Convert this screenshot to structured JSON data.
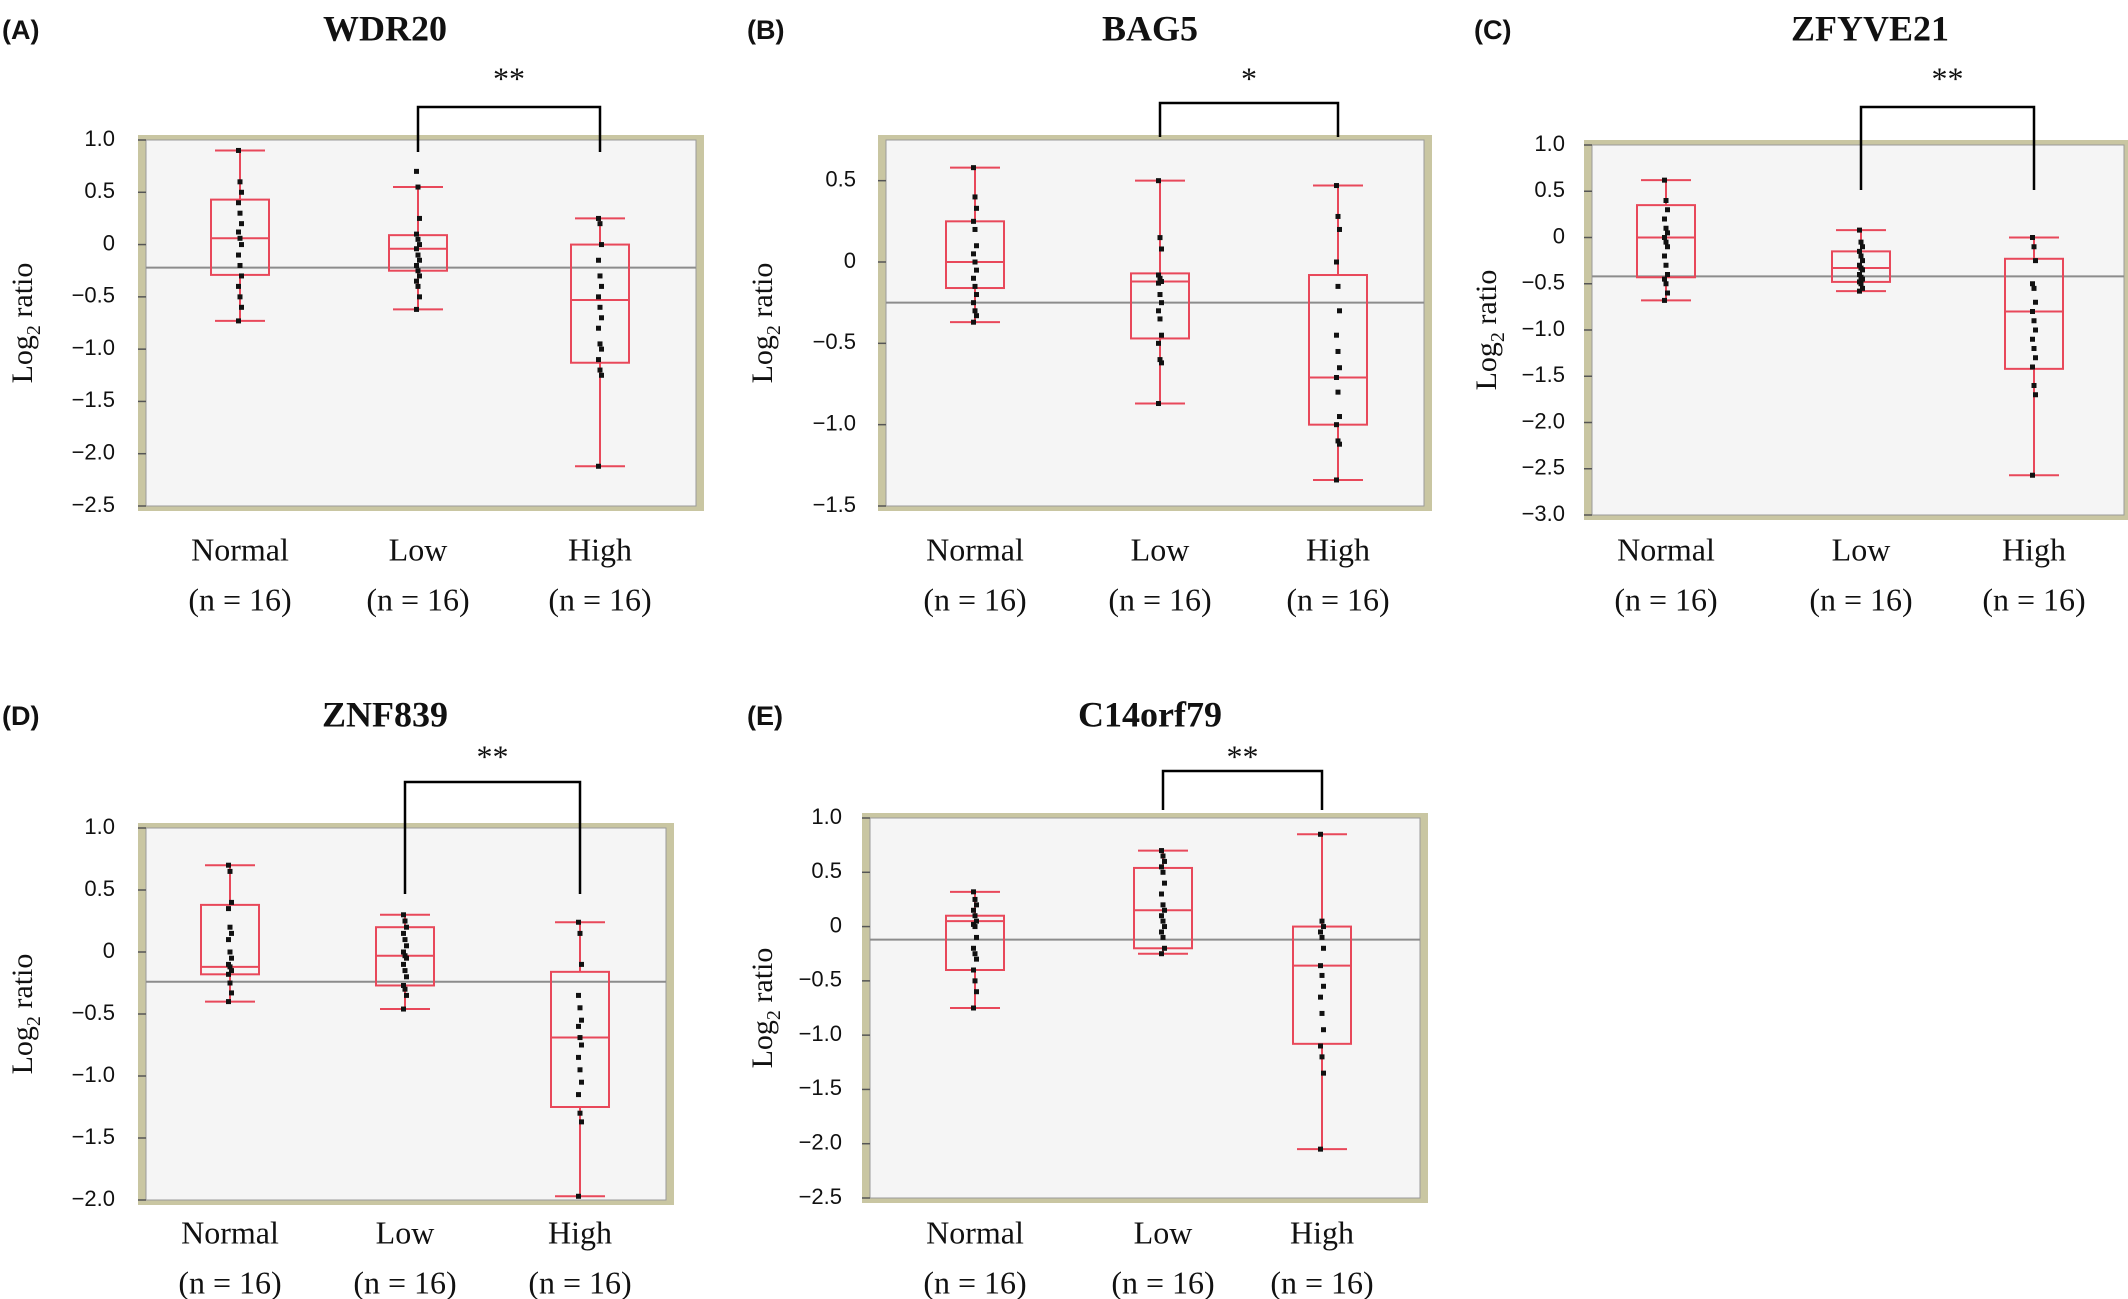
{
  "colors": {
    "box": "#e8485a",
    "plot_bg": "#f5f5f5",
    "frame": "#c9c6a2",
    "overall_mean_line": "#8c8c8c",
    "points": "#111111",
    "text": "#111111"
  },
  "chart_data": [
    {
      "type": "box",
      "panel": "(A)",
      "title": "WDR20",
      "ylabel": "Log2 ratio",
      "ylim": [
        -2.5,
        1.0
      ],
      "yticks": [
        "1.0",
        "0.5",
        "0",
        "−0.5",
        "−1.0",
        "−1.5",
        "−2.0",
        "−2.5"
      ],
      "overall_mean": -0.22,
      "comparison": {
        "between": [
          "Low",
          "High"
        ],
        "label": "**"
      },
      "categories": [
        {
          "name": "Normal",
          "n_label": "(n = 16)",
          "min": -0.73,
          "q1": -0.29,
          "median": 0.06,
          "q3": 0.43,
          "max": 0.9,
          "points": [
            0.9,
            0.6,
            0.5,
            0.4,
            0.3,
            0.2,
            0.12,
            0.06,
            0.0,
            -0.1,
            -0.2,
            -0.3,
            -0.4,
            -0.5,
            -0.6,
            -0.73
          ]
        },
        {
          "name": "Low",
          "n_label": "(n = 16)",
          "min": -0.62,
          "q1": -0.25,
          "median": -0.04,
          "q3": 0.09,
          "max": 0.55,
          "points": [
            0.7,
            0.55,
            0.25,
            0.1,
            0.05,
            0.0,
            -0.04,
            -0.1,
            -0.15,
            -0.2,
            -0.25,
            -0.3,
            -0.35,
            -0.4,
            -0.5,
            -0.62
          ]
        },
        {
          "name": "High",
          "n_label": "(n = 16)",
          "min": -2.12,
          "q1": -1.13,
          "median": -0.53,
          "q3": 0.0,
          "max": 0.25,
          "points": [
            0.25,
            0.2,
            0.0,
            -0.15,
            -0.3,
            -0.4,
            -0.5,
            -0.6,
            -0.7,
            -0.8,
            -0.95,
            -1.0,
            -1.1,
            -1.2,
            -1.25,
            -2.12
          ]
        }
      ]
    },
    {
      "type": "box",
      "panel": "(B)",
      "title": "BAG5",
      "ylabel": "Log2 ratio",
      "ylim": [
        -1.5,
        0.75
      ],
      "yticks": [
        "0.5",
        "0",
        "−0.5",
        "−1.0",
        "−1.5"
      ],
      "overall_mean": -0.25,
      "comparison": {
        "between": [
          "Low",
          "High"
        ],
        "label": "*"
      },
      "categories": [
        {
          "name": "Normal",
          "n_label": "(n = 16)",
          "min": -0.37,
          "q1": -0.16,
          "median": 0.0,
          "q3": 0.25,
          "max": 0.58,
          "points": [
            0.58,
            0.4,
            0.33,
            0.25,
            0.2,
            0.1,
            0.05,
            0.0,
            -0.05,
            -0.1,
            -0.15,
            -0.2,
            -0.25,
            -0.3,
            -0.33,
            -0.37
          ]
        },
        {
          "name": "Low",
          "n_label": "(n = 16)",
          "min": -0.87,
          "q1": -0.47,
          "median": -0.12,
          "q3": -0.07,
          "max": 0.5,
          "points": [
            0.5,
            0.15,
            0.08,
            -0.08,
            -0.1,
            -0.12,
            -0.13,
            -0.2,
            -0.25,
            -0.3,
            -0.35,
            -0.45,
            -0.5,
            -0.6,
            -0.62,
            -0.87
          ]
        },
        {
          "name": "High",
          "n_label": "(n = 16)",
          "min": -1.34,
          "q1": -1.0,
          "median": -0.71,
          "q3": -0.08,
          "max": 0.47,
          "points": [
            0.47,
            0.28,
            0.2,
            0.0,
            -0.15,
            -0.3,
            -0.45,
            -0.55,
            -0.65,
            -0.71,
            -0.8,
            -0.95,
            -1.0,
            -1.1,
            -1.12,
            -1.34
          ]
        }
      ]
    },
    {
      "type": "box",
      "panel": "(C)",
      "title": "ZFYVE21",
      "ylabel": "Log2 ratio",
      "ylim": [
        -3.0,
        1.0
      ],
      "yticks": [
        "1.0",
        "0.5",
        "0",
        "−0.5",
        "−1.0",
        "−1.5",
        "−2.0",
        "−2.5",
        "−3.0"
      ],
      "overall_mean": -0.42,
      "comparison": {
        "between": [
          "Low",
          "High"
        ],
        "label": "**"
      },
      "categories": [
        {
          "name": "Normal",
          "n_label": "(n = 16)",
          "min": -0.68,
          "q1": -0.43,
          "median": 0.0,
          "q3": 0.35,
          "max": 0.62,
          "points": [
            0.62,
            0.4,
            0.3,
            0.2,
            0.1,
            0.05,
            0.0,
            -0.05,
            -0.1,
            -0.2,
            -0.3,
            -0.4,
            -0.45,
            -0.5,
            -0.6,
            -0.68
          ]
        },
        {
          "name": "Low",
          "n_label": "(n = 16)",
          "min": -0.58,
          "q1": -0.48,
          "median": -0.33,
          "q3": -0.15,
          "max": 0.08,
          "points": [
            0.08,
            -0.05,
            -0.1,
            -0.15,
            -0.2,
            -0.25,
            -0.3,
            -0.33,
            -0.35,
            -0.4,
            -0.43,
            -0.45,
            -0.48,
            -0.5,
            -0.55,
            -0.58
          ]
        },
        {
          "name": "High",
          "n_label": "(n = 16)",
          "min": -2.57,
          "q1": -1.42,
          "median": -0.8,
          "q3": -0.23,
          "max": 0.0,
          "points": [
            0.0,
            -0.1,
            -0.25,
            -0.5,
            -0.55,
            -0.7,
            -0.8,
            -0.9,
            -1.0,
            -1.1,
            -1.2,
            -1.3,
            -1.4,
            -1.6,
            -1.7,
            -2.57
          ]
        }
      ]
    },
    {
      "type": "box",
      "panel": "(D)",
      "title": "ZNF839",
      "ylabel": "Log2 ratio",
      "ylim": [
        -2.0,
        1.0
      ],
      "yticks": [
        "1.0",
        "0.5",
        "0",
        "−0.5",
        "−1.0",
        "−1.5",
        "−2.0"
      ],
      "overall_mean": -0.24,
      "comparison": {
        "between": [
          "Low",
          "High"
        ],
        "label": "**"
      },
      "categories": [
        {
          "name": "Normal",
          "n_label": "(n = 16)",
          "min": -0.4,
          "q1": -0.18,
          "median": -0.12,
          "q3": 0.38,
          "max": 0.7,
          "points": [
            0.7,
            0.65,
            0.4,
            0.35,
            0.2,
            0.15,
            0.1,
            0.0,
            -0.05,
            -0.1,
            -0.12,
            -0.15,
            -0.18,
            -0.25,
            -0.33,
            -0.4
          ]
        },
        {
          "name": "Low",
          "n_label": "(n = 16)",
          "min": -0.46,
          "q1": -0.27,
          "median": -0.03,
          "q3": 0.2,
          "max": 0.3,
          "points": [
            0.3,
            0.25,
            0.2,
            0.15,
            0.1,
            0.05,
            0.0,
            -0.03,
            -0.05,
            -0.1,
            -0.15,
            -0.2,
            -0.27,
            -0.3,
            -0.35,
            -0.46
          ]
        },
        {
          "name": "High",
          "n_label": "(n = 16)",
          "min": -1.97,
          "q1": -1.25,
          "median": -0.69,
          "q3": -0.16,
          "max": 0.24,
          "points": [
            0.24,
            0.15,
            -0.1,
            -0.35,
            -0.45,
            -0.55,
            -0.6,
            -0.69,
            -0.75,
            -0.85,
            -0.95,
            -1.05,
            -1.15,
            -1.3,
            -1.37,
            -1.97
          ]
        }
      ]
    },
    {
      "type": "box",
      "panel": "(E)",
      "title": "C14orf79",
      "ylabel": "Log2 ratio",
      "ylim": [
        -2.5,
        1.0
      ],
      "yticks": [
        "1.0",
        "0.5",
        "0",
        "−0.5",
        "−1.0",
        "−1.5",
        "−2.0",
        "−2.5"
      ],
      "overall_mean": -0.12,
      "comparison": {
        "between": [
          "Low",
          "High"
        ],
        "label": "**"
      },
      "categories": [
        {
          "name": "Normal",
          "n_label": "(n = 16)",
          "min": -0.75,
          "q1": -0.4,
          "median": 0.05,
          "q3": 0.1,
          "max": 0.32,
          "points": [
            0.32,
            0.25,
            0.2,
            0.15,
            0.1,
            0.05,
            0.02,
            0.0,
            -0.1,
            -0.2,
            -0.25,
            -0.3,
            -0.4,
            -0.5,
            -0.6,
            -0.75
          ]
        },
        {
          "name": "Low",
          "n_label": "(n = 16)",
          "min": -0.25,
          "q1": -0.2,
          "median": 0.15,
          "q3": 0.54,
          "max": 0.7,
          "points": [
            0.7,
            0.65,
            0.6,
            0.55,
            0.5,
            0.4,
            0.3,
            0.2,
            0.15,
            0.1,
            0.05,
            0.0,
            -0.05,
            -0.1,
            -0.2,
            -0.25
          ]
        },
        {
          "name": "High",
          "n_label": "(n = 16)",
          "min": -2.05,
          "q1": -1.08,
          "median": -0.36,
          "q3": 0.0,
          "max": 0.85,
          "points": [
            0.85,
            0.05,
            0.0,
            -0.05,
            -0.1,
            -0.2,
            -0.36,
            -0.45,
            -0.55,
            -0.65,
            -0.8,
            -0.95,
            -1.1,
            -1.2,
            -1.35,
            -2.05
          ]
        }
      ]
    }
  ]
}
